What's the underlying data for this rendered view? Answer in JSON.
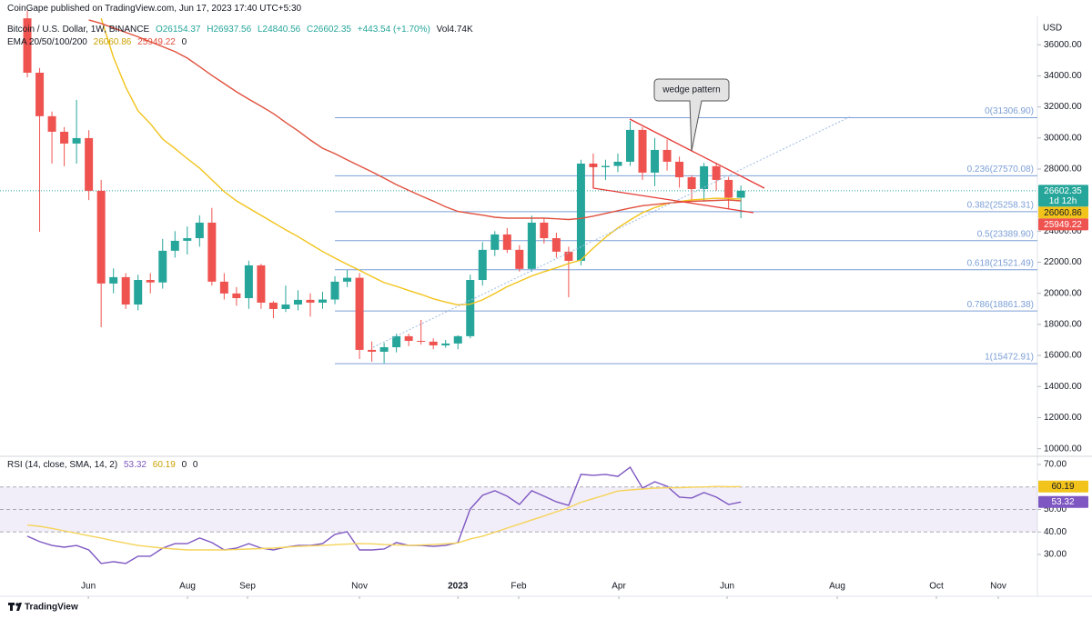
{
  "header": {
    "published": "CoinGape published on TradingView.com, Jun 17, 2023 17:40 UTC+5:30",
    "symbol": "Bitcoin / U.S. Dollar, 1W, BINANCE",
    "ohlc": [
      "O26154.37",
      "H26937.56",
      "L24840.56",
      "C26602.35",
      "+443.54 (+1.70%)"
    ],
    "volume": "Vol4.74K",
    "ema_label": "EMA 20/50/100/200",
    "ema_values": [
      "26060.86",
      "25949.22",
      "0"
    ],
    "rsi_label": "RSI (14, close, SMA, 14, 2)",
    "rsi_values": [
      "53.32",
      "60.19",
      "0",
      "0"
    ],
    "currency": "USD",
    "logo": "TradingView"
  },
  "chart_data": [
    {
      "type": "candlestick",
      "xlim": [
        -1.63,
        82.1
      ],
      "ylim": [
        9510,
        37710
      ],
      "yticks": [
        {
          "value": 10000,
          "label": "10000.00"
        },
        {
          "value": 12000,
          "label": "12000.00"
        },
        {
          "value": 14000,
          "label": "14000.00"
        },
        {
          "value": 16000,
          "label": "16000.00"
        },
        {
          "value": 18000,
          "label": "18000.00"
        },
        {
          "value": 20000,
          "label": "20000.00"
        },
        {
          "value": 22000,
          "label": "22000.00"
        },
        {
          "value": 24000,
          "label": "24000.00"
        },
        {
          "value": 28000,
          "label": "28000.00"
        },
        {
          "value": 30000,
          "label": "30000.00"
        },
        {
          "value": 32000,
          "label": "32000.00"
        },
        {
          "value": 34000,
          "label": "34000.00"
        },
        {
          "value": 36000,
          "label": "36000.00"
        }
      ],
      "up_color": "#26a69a",
      "down_color": "#ef5350",
      "open": [
        37700,
        34200,
        31400,
        30400,
        29640,
        29990,
        26600,
        20630,
        21040,
        19280,
        20860,
        20700,
        22740,
        23380,
        23550,
        24550,
        20750,
        19990,
        19690,
        21800,
        19400,
        18990,
        19280,
        19580,
        19400,
        19600,
        20750,
        21000,
        16360,
        16240,
        16530,
        17240,
        16940,
        16890,
        16650,
        16770,
        17240,
        20860,
        22800,
        23790,
        22800,
        21570,
        24550,
        23550,
        22680,
        22090,
        28350,
        28120,
        28200,
        28470,
        30520,
        27770,
        29230,
        28470,
        27470,
        26710,
        28180,
        27300,
        26154.37
      ],
      "high": [
        38200,
        34500,
        31700,
        30700,
        32450,
        30500,
        27300,
        21600,
        21300,
        21200,
        21300,
        23500,
        24000,
        24300,
        25020,
        25500,
        21300,
        20400,
        22100,
        21900,
        19500,
        20500,
        20200,
        20000,
        20100,
        21100,
        21500,
        21300,
        16900,
        16800,
        17400,
        17400,
        18290,
        17100,
        17000,
        17300,
        21200,
        23300,
        24000,
        24200,
        23100,
        25000,
        24800,
        23900,
        23000,
        28600,
        29000,
        28600,
        29000,
        31100,
        30700,
        30000,
        29900,
        28800,
        27600,
        28400,
        28400,
        27500,
        26937.56
      ],
      "low": [
        33900,
        23960,
        28350,
        28180,
        28350,
        26000,
        17820,
        20000,
        18990,
        18900,
        20000,
        20300,
        22300,
        22500,
        23000,
        20500,
        19600,
        19200,
        19000,
        19000,
        18400,
        18800,
        18900,
        18500,
        19000,
        19300,
        20400,
        15770,
        15600,
        15500,
        16200,
        16600,
        16700,
        16400,
        16500,
        16400,
        17100,
        20500,
        22400,
        22600,
        21400,
        21400,
        23200,
        22300,
        19750,
        21800,
        26800,
        27300,
        27800,
        28200,
        27300,
        26900,
        27900,
        26800,
        25900,
        25900,
        26600,
        25400,
        24840.56
      ],
      "close": [
        34200,
        31400,
        30400,
        29640,
        29990,
        26600,
        20630,
        21040,
        19280,
        20860,
        20700,
        22740,
        23380,
        23550,
        24550,
        20750,
        19990,
        19690,
        21800,
        19400,
        18990,
        19280,
        19580,
        19400,
        19600,
        20750,
        21000,
        16360,
        16240,
        16530,
        17240,
        16940,
        16890,
        16650,
        16770,
        17240,
        20860,
        22800,
        23790,
        22800,
        21570,
        24550,
        23550,
        22680,
        22090,
        28350,
        28120,
        28200,
        28470,
        30520,
        27770,
        29230,
        28470,
        27470,
        26710,
        28180,
        27300,
        26154.37,
        26602.35
      ],
      "series": [
        {
          "color": "#f2c31b",
          "values": [
            null,
            null,
            null,
            null,
            null,
            null,
            37700,
            35190,
            33270,
            31740,
            30920,
            29930,
            29320,
            28670,
            28060,
            27310,
            26540,
            25950,
            25480,
            25020,
            24550,
            24090,
            23650,
            23170,
            22690,
            22270,
            21870,
            21480,
            21080,
            20690,
            20450,
            20180,
            19930,
            19650,
            19440,
            19260,
            19300,
            19580,
            19990,
            20430,
            20770,
            21120,
            21390,
            21640,
            21920,
            22150,
            22910,
            23610,
            24210,
            24720,
            25190,
            25520,
            25780,
            25910,
            26010,
            26060,
            26120,
            26100,
            26060.86
          ]
        },
        {
          "color": "#e0513e",
          "values": [
            null,
            null,
            null,
            null,
            null,
            37600,
            37370,
            37080,
            36800,
            36510,
            36190,
            35870,
            35560,
            35140,
            34590,
            34030,
            33500,
            32970,
            32500,
            32040,
            31570,
            31000,
            30460,
            29870,
            29340,
            28990,
            28590,
            28200,
            27820,
            27410,
            27000,
            26630,
            26270,
            25930,
            25570,
            25270,
            25150,
            25030,
            24900,
            24840,
            24840,
            24840,
            24840,
            24800,
            24750,
            24820,
            24970,
            25140,
            25320,
            25490,
            25640,
            25720,
            25800,
            25870,
            25920,
            25950,
            25980,
            26010,
            25949.22
          ]
        }
      ],
      "fib_start": 25,
      "fib_color": "#7c9fd6",
      "fib": [
        {
          "value": 31306.9,
          "label": "0(31306.90)"
        },
        {
          "value": 27570.08,
          "label": "0.236(27570.08)"
        },
        {
          "value": 25258.31,
          "label": "0.382(25258.31)"
        },
        {
          "value": 23389.9,
          "label": "0.5(23389.90)"
        },
        {
          "value": 21521.49,
          "label": "0.618(21521.49)"
        },
        {
          "value": 18861.38,
          "label": "0.786(18861.38)"
        },
        {
          "value": 15472.91,
          "label": "1(15472.91)"
        }
      ],
      "annotation": "wedge pattern",
      "tags": [
        {
          "value": 26602.35,
          "color": "#26a69a",
          "sub": "1d 12h"
        },
        {
          "value": 26060.86,
          "color": "#f2c31b"
        },
        {
          "value": 25949.22,
          "color": "#ef5350"
        }
      ]
    },
    {
      "type": "line",
      "xlim": [
        -1.63,
        82.1
      ],
      "ylim": [
        11.8,
        73.23
      ],
      "yticks": [
        {
          "value": 30,
          "label": "30.00"
        },
        {
          "value": 40,
          "label": "40.00"
        },
        {
          "value": 50,
          "label": "50.00"
        },
        {
          "value": 70,
          "label": "70.00"
        }
      ],
      "xticks": [
        {
          "value": 4.96,
          "label": "Jun"
        },
        {
          "value": 13.02,
          "label": "Aug"
        },
        {
          "value": 17.9,
          "label": "Sep"
        },
        {
          "value": 27.0,
          "label": "Nov"
        },
        {
          "value": 35.0,
          "label": "2023"
        },
        {
          "value": 39.94,
          "label": "Feb"
        },
        {
          "value": 48.08,
          "label": "Apr"
        },
        {
          "value": 56.88,
          "label": "Jun"
        },
        {
          "value": 65.83,
          "label": "Aug"
        },
        {
          "value": 73.89,
          "label": "Oct"
        },
        {
          "value": 78.92,
          "label": "Nov"
        }
      ],
      "bands": [
        40,
        60
      ],
      "middle": 50,
      "band_color": "#7e57c2",
      "series": [
        {
          "color": "#7e57c2",
          "values": [
            38.1,
            35.7,
            34.0,
            33.2,
            34.0,
            32.0,
            26.0,
            26.8,
            26.0,
            29.2,
            29.2,
            32.8,
            34.8,
            34.8,
            37.3,
            35.3,
            32.0,
            32.8,
            34.8,
            32.8,
            32.0,
            33.2,
            34.0,
            34.0,
            34.8,
            38.9,
            40.1,
            32.0,
            32.0,
            32.4,
            35.3,
            34.0,
            34.0,
            33.6,
            34.0,
            35.3,
            50.2,
            56.3,
            58.3,
            55.9,
            52.2,
            58.3,
            55.9,
            53.4,
            51.8,
            65.6,
            65.2,
            65.6,
            64.7,
            68.8,
            59.5,
            62.3,
            60.3,
            55.5,
            55.1,
            57.5,
            55.5,
            52.2,
            53.32
          ]
        },
        {
          "color": "#f5d35a",
          "values": [
            43.1,
            42.5,
            41.6,
            40.5,
            39.4,
            38.3,
            37.3,
            36.1,
            35.0,
            34.0,
            33.4,
            32.8,
            32.4,
            32.0,
            32.0,
            32.0,
            32.0,
            32.2,
            32.4,
            32.6,
            32.8,
            33.2,
            33.6,
            33.8,
            34.0,
            34.3,
            34.6,
            34.8,
            34.7,
            34.4,
            34.2,
            34.0,
            34.2,
            34.4,
            34.7,
            35.1,
            36.9,
            38.1,
            39.9,
            41.7,
            43.5,
            45.3,
            47.1,
            49.0,
            50.8,
            53.2,
            54.8,
            56.5,
            58.2,
            58.7,
            59.1,
            59.5,
            59.6,
            59.7,
            59.9,
            60.0,
            60.2,
            60.1,
            60.19
          ]
        }
      ],
      "tags": [
        {
          "value": 60.19,
          "color": "#f2c31b"
        },
        {
          "value": 53.32,
          "color": "#7e57c2"
        }
      ]
    }
  ]
}
